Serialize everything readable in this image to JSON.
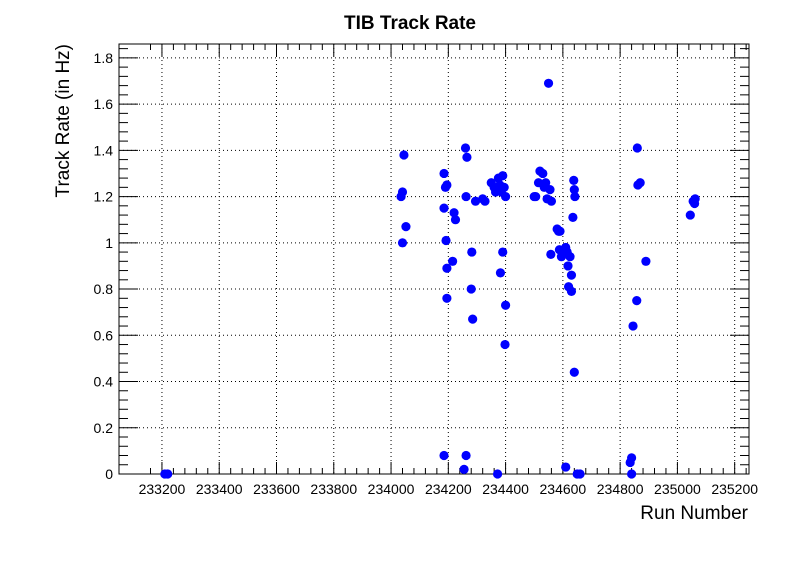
{
  "chart_data": {
    "type": "scatter",
    "title": "TIB Track Rate",
    "xlabel": "Run Number",
    "ylabel": "Track Rate (in Hz)",
    "xlim": [
      233050,
      235250
    ],
    "ylim": [
      0,
      1.86
    ],
    "grid": true,
    "marker_color": "#0000ff",
    "x_ticks": [
      233200,
      233400,
      233600,
      233800,
      234000,
      234200,
      234400,
      234600,
      234800,
      235000,
      235200
    ],
    "x_tick_labels": [
      "233200",
      "233400",
      "233600",
      "233800",
      "234000",
      "234200",
      "234400",
      "234600",
      "234800",
      "235000",
      "235200"
    ],
    "y_ticks": [
      0,
      0.2,
      0.4,
      0.6,
      0.8,
      1,
      1.2,
      1.4,
      1.6,
      1.8
    ],
    "y_tick_labels": [
      "0",
      "0.2",
      "0.4",
      "0.6",
      "0.8",
      "1",
      "1.2",
      "1.4",
      "1.6",
      "1.8"
    ],
    "points": [
      {
        "x": 233210,
        "y": 0.0
      },
      {
        "x": 233220,
        "y": 0.0
      },
      {
        "x": 234035,
        "y": 1.2
      },
      {
        "x": 234040,
        "y": 1.22
      },
      {
        "x": 234045,
        "y": 1.38
      },
      {
        "x": 234040,
        "y": 1.0
      },
      {
        "x": 234052,
        "y": 1.07
      },
      {
        "x": 234185,
        "y": 1.3
      },
      {
        "x": 234190,
        "y": 1.24
      },
      {
        "x": 234195,
        "y": 1.25
      },
      {
        "x": 234185,
        "y": 1.15
      },
      {
        "x": 234192,
        "y": 1.01
      },
      {
        "x": 234195,
        "y": 0.89
      },
      {
        "x": 234195,
        "y": 0.76
      },
      {
        "x": 234185,
        "y": 0.08
      },
      {
        "x": 234215,
        "y": 0.92
      },
      {
        "x": 234220,
        "y": 1.13
      },
      {
        "x": 234225,
        "y": 1.1
      },
      {
        "x": 234260,
        "y": 1.41
      },
      {
        "x": 234265,
        "y": 1.37
      },
      {
        "x": 234262,
        "y": 1.2
      },
      {
        "x": 234282,
        "y": 0.96
      },
      {
        "x": 234280,
        "y": 0.8
      },
      {
        "x": 234285,
        "y": 0.67
      },
      {
        "x": 234262,
        "y": 0.08
      },
      {
        "x": 234255,
        "y": 0.02
      },
      {
        "x": 234295,
        "y": 1.18
      },
      {
        "x": 234320,
        "y": 1.19
      },
      {
        "x": 234328,
        "y": 1.18
      },
      {
        "x": 234350,
        "y": 1.26
      },
      {
        "x": 234360,
        "y": 1.24
      },
      {
        "x": 234365,
        "y": 1.22
      },
      {
        "x": 234375,
        "y": 1.28
      },
      {
        "x": 234380,
        "y": 1.25
      },
      {
        "x": 234390,
        "y": 1.29
      },
      {
        "x": 234385,
        "y": 1.22
      },
      {
        "x": 234395,
        "y": 1.24
      },
      {
        "x": 234400,
        "y": 1.2
      },
      {
        "x": 234390,
        "y": 0.96
      },
      {
        "x": 234382,
        "y": 0.87
      },
      {
        "x": 234400,
        "y": 0.73
      },
      {
        "x": 234398,
        "y": 0.56
      },
      {
        "x": 234372,
        "y": 0.0
      },
      {
        "x": 234500,
        "y": 1.2
      },
      {
        "x": 234505,
        "y": 1.2
      },
      {
        "x": 234515,
        "y": 1.26
      },
      {
        "x": 234520,
        "y": 1.31
      },
      {
        "x": 234530,
        "y": 1.3
      },
      {
        "x": 234535,
        "y": 1.24
      },
      {
        "x": 234540,
        "y": 1.26
      },
      {
        "x": 234545,
        "y": 1.19
      },
      {
        "x": 234555,
        "y": 1.23
      },
      {
        "x": 234560,
        "y": 1.18
      },
      {
        "x": 234550,
        "y": 1.69
      },
      {
        "x": 234580,
        "y": 1.06
      },
      {
        "x": 234585,
        "y": 1.05
      },
      {
        "x": 234590,
        "y": 1.05
      },
      {
        "x": 234558,
        "y": 0.95
      },
      {
        "x": 234588,
        "y": 0.97
      },
      {
        "x": 234595,
        "y": 0.94
      },
      {
        "x": 234610,
        "y": 0.98
      },
      {
        "x": 234615,
        "y": 0.96
      },
      {
        "x": 234618,
        "y": 0.9
      },
      {
        "x": 234625,
        "y": 0.94
      },
      {
        "x": 234630,
        "y": 0.86
      },
      {
        "x": 234620,
        "y": 0.81
      },
      {
        "x": 234630,
        "y": 0.79
      },
      {
        "x": 234638,
        "y": 1.27
      },
      {
        "x": 234640,
        "y": 1.23
      },
      {
        "x": 234642,
        "y": 1.2
      },
      {
        "x": 234635,
        "y": 1.11
      },
      {
        "x": 234640,
        "y": 0.44
      },
      {
        "x": 234610,
        "y": 0.03
      },
      {
        "x": 234650,
        "y": 0.0
      },
      {
        "x": 234660,
        "y": 0.0
      },
      {
        "x": 234835,
        "y": 0.05
      },
      {
        "x": 234840,
        "y": 0.07
      },
      {
        "x": 234840,
        "y": 0.0
      },
      {
        "x": 234845,
        "y": 0.64
      },
      {
        "x": 234858,
        "y": 0.75
      },
      {
        "x": 234860,
        "y": 1.41
      },
      {
        "x": 234862,
        "y": 1.25
      },
      {
        "x": 234870,
        "y": 1.26
      },
      {
        "x": 234890,
        "y": 0.92
      },
      {
        "x": 235045,
        "y": 1.12
      },
      {
        "x": 235055,
        "y": 1.18
      },
      {
        "x": 235060,
        "y": 1.17
      },
      {
        "x": 235062,
        "y": 1.19
      }
    ]
  }
}
